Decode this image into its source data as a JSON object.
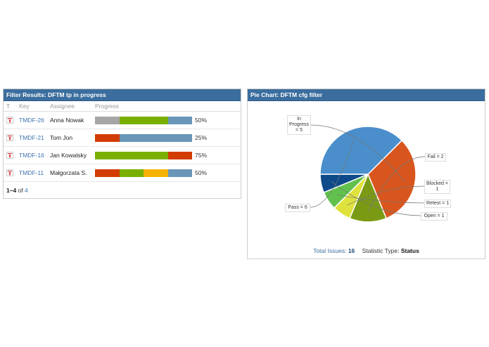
{
  "filter_panel": {
    "title": "Filter Results: DFTM tp in progress",
    "columns": [
      "T",
      "Key",
      "Assignee",
      "Progress"
    ],
    "rows": [
      {
        "type_icon": "test-plan-icon",
        "key": "TMDF-26",
        "assignee": "Anna Nowak",
        "segments": [
          "#a6a6a6",
          "#79b000",
          "#79b000",
          "#6a96b8"
        ],
        "percent": "50%"
      },
      {
        "type_icon": "test-plan-icon",
        "key": "TMDF-21",
        "assignee": "Tom Jon",
        "segments": [
          "#d33c00",
          "#6a96b8",
          "#6a96b8",
          "#6a96b8"
        ],
        "percent": "25%"
      },
      {
        "type_icon": "test-plan-icon",
        "key": "TMDF-16",
        "assignee": "Jan Kowalsky",
        "segments": [
          "#79b000",
          "#79b000",
          "#79b000",
          "#d33c00"
        ],
        "percent": "75%"
      },
      {
        "type_icon": "test-plan-icon",
        "key": "TMDF-11",
        "assignee": "Małgorzata S.",
        "segments": [
          "#d33c00",
          "#79b000",
          "#f5b200",
          "#6a96b8"
        ],
        "percent": "50%"
      }
    ],
    "pager": {
      "range": "1–4",
      "of": "of",
      "total": "4"
    }
  },
  "pie_panel": {
    "title": "Pie Chart: DFTM cfg filter",
    "footer": {
      "total_label": "Total Issues:",
      "total_value": "16",
      "stat_label": "Statistic Type:",
      "stat_value": "Status"
    }
  },
  "chart_data": {
    "type": "pie",
    "title": "Pie Chart: DFTM cfg filter",
    "categories": [
      "In Progress",
      "Fail",
      "Blocked",
      "Retest",
      "Open",
      "Pass"
    ],
    "values": [
      5,
      2,
      1,
      1,
      1,
      6
    ],
    "colors": [
      "#d8561e",
      "#7b9a14",
      "#dfe23d",
      "#61c14c",
      "#0e4a8a",
      "#4a8ecb"
    ],
    "labels": [
      "In Progress = 5",
      "Fail = 2",
      "Blocked = 1",
      "Retest = 1",
      "Open = 1",
      "Pass = 6"
    ],
    "total": 16,
    "statistic_type": "Status"
  }
}
